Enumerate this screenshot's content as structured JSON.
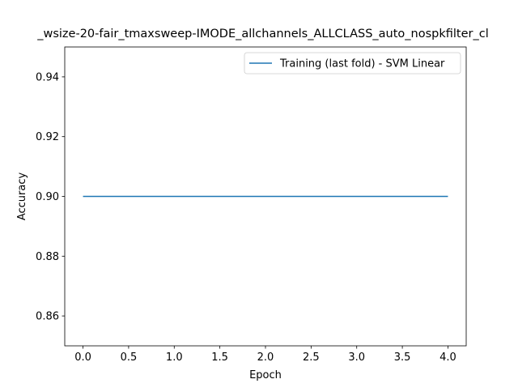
{
  "chart_data": {
    "type": "line",
    "title": "..._wsize-20-fair_tmaxsweep-IMODE_allchannels_ALLCLASS_auto_nospkfilter_cl...",
    "title_visible": "_wsize-20-fair_tmaxsweep-IMODE_allchannels_ALLCLASS_auto_nospkfilter_cl",
    "xlabel": "Epoch",
    "ylabel": "Accuracy",
    "xlim": [
      -0.2,
      4.2
    ],
    "ylim": [
      0.85,
      0.95
    ],
    "x_ticks": [
      "0.0",
      "0.5",
      "1.0",
      "1.5",
      "2.0",
      "2.5",
      "3.0",
      "3.5",
      "4.0"
    ],
    "y_ticks": [
      "0.86",
      "0.88",
      "0.90",
      "0.92",
      "0.94"
    ],
    "grid": false,
    "legend_position": "top-right",
    "series": [
      {
        "name": "Training (last fold) - SVM Linear",
        "color": "#1f77b4",
        "x": [
          0,
          1,
          2,
          3,
          4
        ],
        "y": [
          0.9,
          0.9,
          0.9,
          0.9,
          0.9
        ]
      }
    ]
  }
}
